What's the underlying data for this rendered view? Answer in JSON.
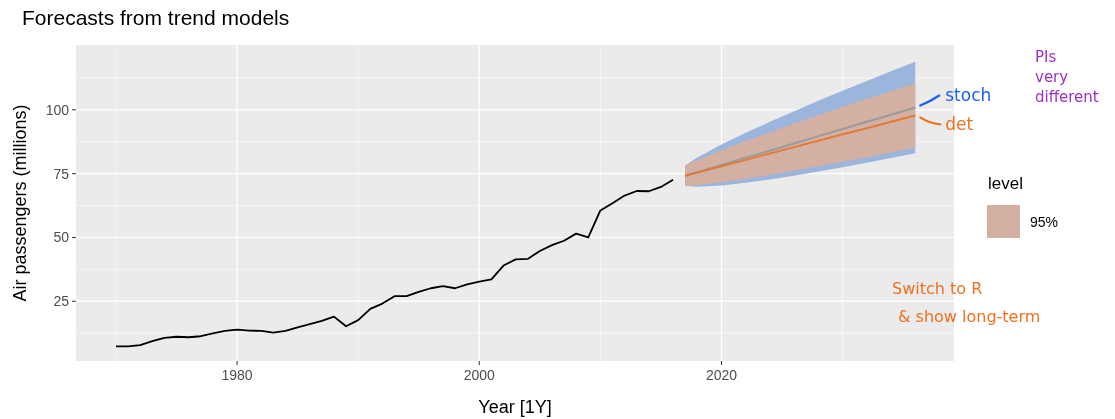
{
  "chart_data": {
    "type": "line",
    "title": "Forecasts from trend models",
    "xlabel": "Year [1Y]",
    "ylabel": "Air passengers (millions)",
    "xlim": [
      1966.7,
      2039.2
    ],
    "ylim": [
      1.6,
      125.4
    ],
    "xticks": [
      1980,
      2000,
      2020
    ],
    "yticks": [
      25,
      50,
      75,
      100
    ],
    "grid": true,
    "legend": "right",
    "legend_title": "level",
    "series": [
      {
        "color": "#000000",
        "x": [
          1970,
          1971,
          1972,
          1973,
          1974,
          1975,
          1976,
          1977,
          1978,
          1979,
          1980,
          1981,
          1982,
          1983,
          1984,
          1985,
          1986,
          1987,
          1988,
          1989,
          1990,
          1991,
          1992,
          1993,
          1994,
          1995,
          1996,
          1997,
          1998,
          1999,
          2000,
          2001,
          2002,
          2003,
          2004,
          2005,
          2006,
          2007,
          2008,
          2009,
          2010,
          2011,
          2012,
          2013,
          2014,
          2015,
          2016
        ],
        "values": [
          7.3,
          7.3,
          7.8,
          9.4,
          10.7,
          11.1,
          10.9,
          11.3,
          12.4,
          13.4,
          13.9,
          13.5,
          13.4,
          12.7,
          13.4,
          14.8,
          16.0,
          17.3,
          19.0,
          15.2,
          17.6,
          22.0,
          24.1,
          27.0,
          27.0,
          28.7,
          30.1,
          30.9,
          30.1,
          31.6,
          32.7,
          33.6,
          39.0,
          41.4,
          41.6,
          44.7,
          47.0,
          48.7,
          51.5,
          50.0,
          60.6,
          63.4,
          66.4,
          68.2,
          68.1,
          69.8,
          72.6
        ]
      },
      {
        "name": "stoch",
        "color": "#9a9a9a",
        "x": [
          2017,
          2018,
          2020,
          2022,
          2024,
          2026,
          2028,
          2030,
          2032,
          2034,
          2036
        ],
        "values": [
          74.2,
          75.6,
          78.4,
          81.2,
          84.0,
          86.8,
          89.7,
          92.5,
          95.3,
          98.1,
          100.9
        ],
        "upper": [
          78.2,
          81.3,
          86.4,
          91.0,
          95.3,
          99.4,
          103.6,
          107.5,
          111.3,
          115.1,
          118.8
        ],
        "lower": [
          70.2,
          69.9,
          70.4,
          71.4,
          72.7,
          74.2,
          75.8,
          77.5,
          79.3,
          81.1,
          83.0
        ]
      },
      {
        "name": "det",
        "color": "#e07b39",
        "x": [
          2017,
          2018,
          2020,
          2022,
          2024,
          2026,
          2028,
          2030,
          2032,
          2034,
          2036
        ],
        "values": [
          74.2,
          75.4,
          77.9,
          80.4,
          82.9,
          85.4,
          87.9,
          90.4,
          92.8,
          95.3,
          97.8
        ],
        "upper": [
          78.3,
          80.3,
          84.2,
          87.8,
          91.2,
          94.6,
          97.9,
          101.1,
          104.2,
          107.3,
          110.4
        ],
        "lower": [
          70.1,
          70.5,
          71.6,
          73.0,
          74.6,
          76.2,
          77.9,
          79.7,
          81.4,
          83.3,
          85.2
        ]
      }
    ],
    "annotations": [
      "95%",
      "PIs very different",
      "Switch to R & show long-term"
    ]
  }
}
